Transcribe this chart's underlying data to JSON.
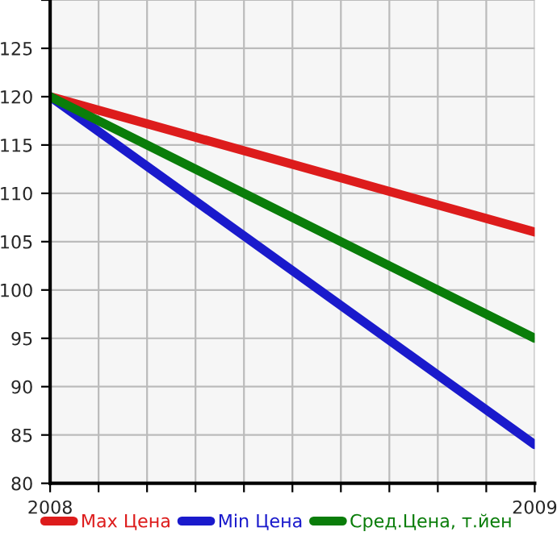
{
  "chart_data": {
    "type": "line",
    "x": [
      2008,
      2009
    ],
    "series": [
      {
        "name": "Max Цена",
        "color": "#dd1c1c",
        "values": [
          120,
          106
        ]
      },
      {
        "name": "Min Цена",
        "color": "#1a1acc",
        "values": [
          120,
          84
        ]
      },
      {
        "name": "Сред.Цена, т.йен",
        "color": "#0a7d0a",
        "values": [
          120,
          95
        ]
      }
    ],
    "xlim": [
      2008,
      2009
    ],
    "xticks": [
      2008,
      {
        "value": 2008.1,
        "label": null
      },
      {
        "value": 2008.2,
        "label": null
      },
      {
        "value": 2008.3,
        "label": null
      },
      {
        "value": 2008.4,
        "label": null
      },
      {
        "value": 2008.5,
        "label": null
      },
      {
        "value": 2008.6,
        "label": null
      },
      {
        "value": 2008.7,
        "label": null
      },
      {
        "value": 2008.8,
        "label": null
      },
      {
        "value": 2008.9,
        "label": null
      },
      2009
    ],
    "ylim": [
      80,
      130
    ],
    "yticks": [
      80,
      85,
      90,
      95,
      100,
      105,
      110,
      115,
      120,
      125,
      {
        "value": 130,
        "label": null
      }
    ],
    "grid": true,
    "legend": "bottom",
    "marker": "none",
    "line_style": "solid"
  }
}
